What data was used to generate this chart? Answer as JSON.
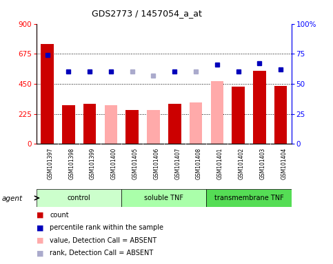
{
  "title": "GDS2773 / 1457054_a_at",
  "samples": [
    "GSM101397",
    "GSM101398",
    "GSM101399",
    "GSM101400",
    "GSM101405",
    "GSM101406",
    "GSM101407",
    "GSM101408",
    "GSM101401",
    "GSM101402",
    "GSM101403",
    "GSM101404"
  ],
  "groups": [
    {
      "name": "control",
      "start": 0,
      "end": 4
    },
    {
      "name": "soluble TNF",
      "start": 4,
      "end": 8
    },
    {
      "name": "transmembrane TNF",
      "start": 8,
      "end": 12
    }
  ],
  "group_colors": [
    "#ccffcc",
    "#aaffaa",
    "#55dd55"
  ],
  "bar_values": [
    750,
    290,
    300,
    290,
    255,
    255,
    300,
    310,
    470,
    430,
    545,
    435
  ],
  "bar_absent": [
    false,
    false,
    false,
    true,
    false,
    true,
    false,
    true,
    true,
    false,
    false,
    false
  ],
  "rank_pct": [
    74,
    60,
    60,
    60,
    60,
    57,
    60,
    60,
    66,
    60,
    67,
    62
  ],
  "rank_absent": [
    false,
    false,
    false,
    false,
    true,
    true,
    false,
    true,
    false,
    false,
    false,
    false
  ],
  "bar_color_present": "#cc0000",
  "bar_color_absent": "#ffaaaa",
  "rank_color_present": "#0000bb",
  "rank_color_absent": "#aaaacc",
  "yticks_left": [
    0,
    225,
    450,
    675,
    900
  ],
  "yticks_right": [
    0,
    25,
    50,
    75,
    100
  ],
  "legend_items": [
    {
      "label": "count",
      "color": "#cc0000"
    },
    {
      "label": "percentile rank within the sample",
      "color": "#0000bb"
    },
    {
      "label": "value, Detection Call = ABSENT",
      "color": "#ffaaaa"
    },
    {
      "label": "rank, Detection Call = ABSENT",
      "color": "#aaaacc"
    }
  ]
}
